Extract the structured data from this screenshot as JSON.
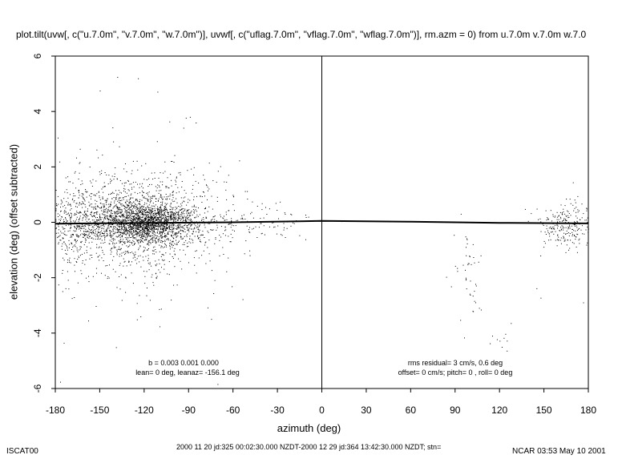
{
  "chart_data": {
    "type": "scatter",
    "title": "plot.tilt(uvw[, c(\"u.7.0m\", \"v.7.0m\", \"w.7.0m\")], uvwf[, c(\"uflag.7.0m\",  \"vflag.7.0m\", \"wflag.7.0m\")], rm.azm = 0) from u.7.0m v.7.0m w.7.0",
    "xlabel": "azimuth (deg)",
    "ylabel": "elevation (deg)  (offset subtracted)",
    "xlim": [
      -180,
      180
    ],
    "ylim": [
      -6,
      6
    ],
    "xticks": [
      -180,
      -150,
      -120,
      -90,
      -60,
      -30,
      0,
      30,
      60,
      90,
      120,
      150,
      180
    ],
    "yticks": [
      -6,
      -4,
      -2,
      0,
      2,
      4,
      6
    ],
    "grid": false,
    "vertical_reference_x": 0,
    "fit_line": [
      {
        "x": -180,
        "y": -0.05
      },
      {
        "x": -60,
        "y": 0.0
      },
      {
        "x": 0,
        "y": 0.05
      },
      {
        "x": 60,
        "y": 0.02
      },
      {
        "x": 120,
        "y": -0.02
      },
      {
        "x": 180,
        "y": -0.04
      }
    ],
    "point_clusters": [
      {
        "x_center": -118,
        "x_spread": 16,
        "y_center": 0.0,
        "y_spread": 0.35,
        "count": 1700
      },
      {
        "x_center": -130,
        "x_spread": 32,
        "y_center": 0.0,
        "y_spread": 0.9,
        "count": 1500
      },
      {
        "x_center": -165,
        "x_spread": 12,
        "y_center": 0.0,
        "y_spread": 0.6,
        "count": 300
      },
      {
        "x_center": -60,
        "x_spread": 28,
        "y_center": 0.0,
        "y_spread": 0.35,
        "count": 150
      },
      {
        "x_center": 165,
        "x_spread": 10,
        "y_center": -0.15,
        "y_spread": 0.45,
        "count": 250
      },
      {
        "x_center": 100,
        "x_spread": 6,
        "y_center": -2.0,
        "y_spread": 1.0,
        "count": 45
      },
      {
        "x_center": 122,
        "x_spread": 3,
        "y_center": -4.3,
        "y_spread": 0.3,
        "count": 10
      }
    ],
    "annotations_left": [
      "b = 0.003 0.001 0.000",
      "lean= 0 deg, leanaz= -156.1 deg"
    ],
    "annotations_right": [
      "rms residual= 3 cm/s, 0.6 deg",
      "offset= 0 cm/s; pitch=  0 , roll=  0 deg"
    ]
  },
  "footer": {
    "left": "ISCAT00",
    "center": "2000 11 20 jd:325 00:02:30.000 NZDT-2000 12 29 jd:364 13:42:30.000 NZDT; stn=",
    "right": "NCAR 03:53 May 10 2001"
  },
  "colors": {
    "points": "#000000",
    "axes": "#000000",
    "background": "#ffffff"
  }
}
